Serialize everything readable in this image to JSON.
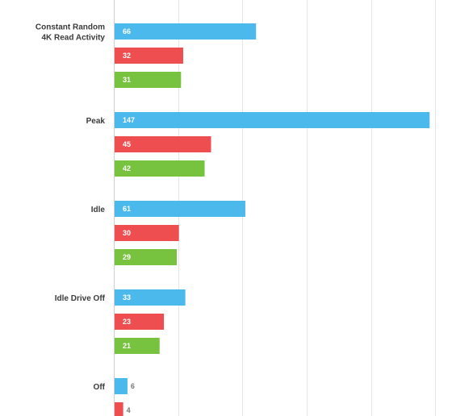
{
  "chart_data": {
    "type": "bar",
    "orientation": "horizontal",
    "categories": [
      "Constant Random\n4K Read Activity",
      "Peak",
      "Idle",
      "Idle Drive Off",
      "Off"
    ],
    "series": [
      {
        "values": [
          66,
          147,
          61,
          33,
          6
        ],
        "color": "#4cb9ec"
      },
      {
        "values": [
          32,
          45,
          30,
          23,
          4
        ],
        "color": "#ef4e50"
      },
      {
        "values": [
          31,
          42,
          29,
          21,
          null
        ],
        "color": "#77c23f"
      }
    ],
    "title": "",
    "xlabel": "",
    "ylabel": "",
    "xlim": [
      0,
      150
    ],
    "grid": true,
    "legend": "none"
  }
}
